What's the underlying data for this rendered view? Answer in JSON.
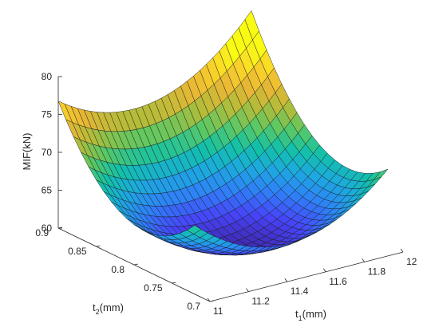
{
  "chart_data": {
    "type": "surface",
    "title": "",
    "xlabel": {
      "base": "t",
      "sub": "1",
      "unit": "(mm)"
    },
    "ylabel": {
      "base": "t",
      "sub": "2",
      "unit": "(mm)"
    },
    "zlabel": "MIF(kN)",
    "xlim": [
      11,
      12
    ],
    "ylim": [
      0.7,
      0.9
    ],
    "zlim": [
      60,
      80
    ],
    "xticks": [
      11,
      11.2,
      11.4,
      11.6,
      11.8,
      12
    ],
    "xtick_labels": [
      "11",
      "11.2",
      "11.4",
      "11.6",
      "11.8",
      "12"
    ],
    "yticks": [
      0.7,
      0.75,
      0.8,
      0.85,
      0.9
    ],
    "ytick_labels": [
      "0.7",
      "0.75",
      "0.8",
      "0.85",
      "0.9"
    ],
    "zticks": [
      60,
      65,
      70,
      75,
      80
    ],
    "ztick_labels": [
      "60",
      "65",
      "70",
      "75",
      "80"
    ],
    "x_range": [
      11,
      12
    ],
    "y_range": [
      0.72,
      0.9
    ],
    "x_samples": 31,
    "y_samples": 19,
    "surface_model": {
      "minimum": 60.3,
      "minimum_at": {
        "t1": 11.45,
        "t2": 0.78
      },
      "corner_values": {
        "t1_11_t2_0.9": 72.5,
        "t1_12_t2_0.9": 77.0,
        "t1_12_t2_0.72": 67.0,
        "t1_11_t2_0.72": 60.4
      },
      "note_values_read_from_axes": true
    },
    "colormap": [
      "#3e26a8",
      "#4743f8",
      "#2f80f8",
      "#1ca9df",
      "#12c1a8",
      "#5cc863",
      "#b1bc3a",
      "#e7b635",
      "#fad32a",
      "#f9fb15"
    ],
    "grid": false,
    "legend": "none"
  }
}
